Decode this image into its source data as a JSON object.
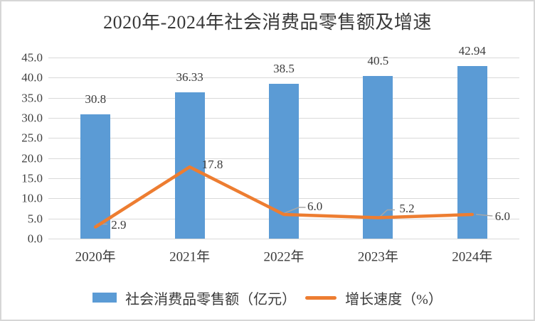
{
  "title": "2020年-2024年社会消费品零售额及增速",
  "chart_data": {
    "type": "bar",
    "subtype": "combo-bar-line",
    "title": "2020年-2024年社会消费品零售额及增速",
    "categories": [
      "2020年",
      "2021年",
      "2022年",
      "2023年",
      "2024年"
    ],
    "series": [
      {
        "name": "社会消费品零售额（亿元）",
        "type": "bar",
        "color": "#5B9BD5",
        "values": [
          30.8,
          36.33,
          38.5,
          40.5,
          42.94
        ],
        "labels": [
          "30.8",
          "36.33",
          "38.5",
          "40.5",
          "42.94"
        ]
      },
      {
        "name": "增长速度（%）",
        "type": "line",
        "color": "#ED7D31",
        "values": [
          2.9,
          17.8,
          6.0,
          5.2,
          6.0
        ],
        "labels": [
          "2.9",
          "17.8",
          "6.0",
          "5.2",
          "6.0"
        ]
      }
    ],
    "y_axis": {
      "min": 0,
      "max": 45,
      "step": 5,
      "tick_labels": [
        "0.0",
        "5.0",
        "10.0",
        "15.0",
        "20.0",
        "25.0",
        "30.0",
        "35.0",
        "40.0",
        "45.0"
      ]
    },
    "x_axis_label": "",
    "y_axis_label": "",
    "grid": true,
    "legend_position": "bottom"
  },
  "legend": {
    "items": [
      {
        "label": "社会消费品零售额（亿元）",
        "swatch": "bar",
        "color": "#5B9BD5"
      },
      {
        "label": "增长速度（%）",
        "swatch": "line",
        "color": "#ED7D31"
      }
    ]
  },
  "colors": {
    "bar": "#5B9BD5",
    "line": "#ED7D31",
    "gridline": "#D9D9D9",
    "leader": "#A6A6A6",
    "text": "#3A3A3A",
    "border": "#D6D6D6"
  }
}
